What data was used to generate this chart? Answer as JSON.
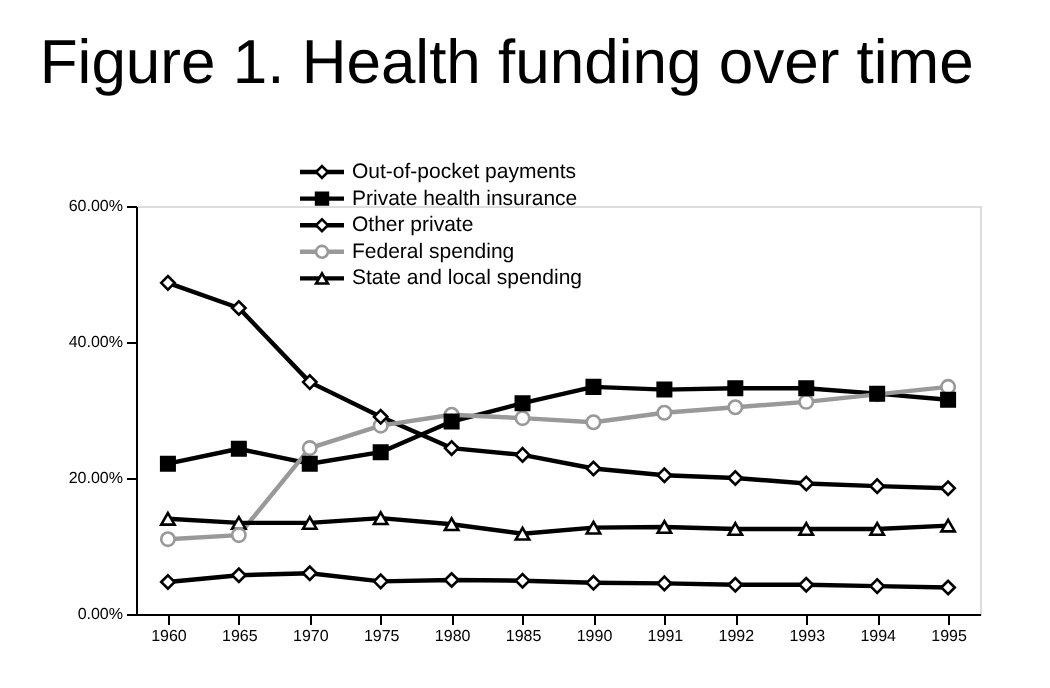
{
  "chart_data": {
    "type": "line",
    "title": "Figure 1. Health funding over time",
    "categories": [
      "1960",
      "1965",
      "1970",
      "1975",
      "1980",
      "1985",
      "1990",
      "1991",
      "1992",
      "1993",
      "1994",
      "1995"
    ],
    "series": [
      {
        "name": "Out-of-pocket payments",
        "color": "#000000",
        "marker": "diamond",
        "values": [
          48.7,
          45.0,
          34.1,
          29.0,
          24.4,
          23.4,
          21.4,
          20.4,
          20.0,
          19.2,
          18.8,
          18.5
        ]
      },
      {
        "name": "Private health insurance",
        "color": "#000000",
        "marker": "square",
        "values": [
          22.1,
          24.3,
          22.1,
          23.8,
          28.3,
          31.0,
          33.4,
          33.0,
          33.2,
          33.2,
          32.4,
          31.5
        ]
      },
      {
        "name": "Other private",
        "color": "#000000",
        "marker": "diamond",
        "values": [
          4.7,
          5.7,
          6.0,
          4.8,
          5.0,
          4.9,
          4.6,
          4.5,
          4.3,
          4.3,
          4.1,
          3.9
        ]
      },
      {
        "name": "Federal spending",
        "color": "#999999",
        "marker": "circle",
        "values": [
          11.0,
          11.6,
          24.4,
          27.7,
          29.3,
          28.8,
          28.2,
          29.6,
          30.4,
          31.2,
          32.3,
          33.4
        ]
      },
      {
        "name": "State and local spending",
        "color": "#000000",
        "marker": "triangle",
        "values": [
          14.0,
          13.4,
          13.4,
          14.1,
          13.2,
          11.8,
          12.7,
          12.8,
          12.5,
          12.5,
          12.5,
          13.0
        ]
      }
    ],
    "ylim": [
      0,
      60
    ],
    "yticks": [
      {
        "value": 0,
        "label": "0.00%"
      },
      {
        "value": 20,
        "label": "20.00%"
      },
      {
        "value": 40,
        "label": "40.00%"
      },
      {
        "value": 60,
        "label": "60.00%"
      }
    ],
    "grid": false,
    "legend": "top",
    "line_style": "solid"
  }
}
